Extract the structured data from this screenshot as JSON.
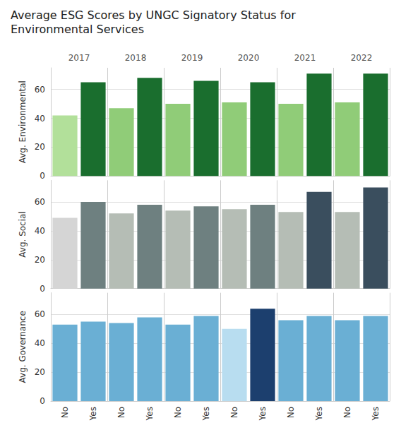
{
  "chart_data": [
    {
      "type": "bar",
      "title": "Average ESG Scores by UNGC Signatory Status for",
      "subtitle": "Environmental Services",
      "ylabel": "Avg. Environmental",
      "categories": [
        "2017",
        "2018",
        "2019",
        "2020",
        "2021",
        "2022"
      ],
      "series": [
        {
          "name": "No",
          "values": [
            42,
            47,
            50,
            51,
            50,
            51
          ],
          "colors": [
            "#b2e09a",
            "#90cc78",
            "#90cc78",
            "#90cc78",
            "#90cc78",
            "#90cc78"
          ]
        },
        {
          "name": "Yes",
          "values": [
            65,
            68,
            66,
            65,
            71,
            71
          ],
          "colors": [
            "#1a6e2e",
            "#1a6e2e",
            "#1a6e2e",
            "#1a6e2e",
            "#1a6e2e",
            "#1a6e2e"
          ]
        }
      ],
      "ylim": [
        0,
        75
      ],
      "yticks": [
        0,
        20,
        40,
        60
      ],
      "grid": true
    },
    {
      "type": "bar",
      "ylabel": "Avg. Social",
      "categories": [
        "2017",
        "2018",
        "2019",
        "2020",
        "2021",
        "2022"
      ],
      "series": [
        {
          "name": "No",
          "values": [
            49,
            52,
            54,
            55,
            53,
            53
          ],
          "colors": [
            "#d5d5d5",
            "#b5bdb5",
            "#b5bdb5",
            "#b5bdb5",
            "#b5bdb5",
            "#b5bdb5"
          ]
        },
        {
          "name": "Yes",
          "values": [
            60,
            58,
            57,
            58,
            67,
            70
          ],
          "colors": [
            "#6e8080",
            "#6e8080",
            "#6e8080",
            "#6e8080",
            "#3a4e5e",
            "#3a4e5e"
          ]
        }
      ],
      "ylim": [
        0,
        75
      ],
      "yticks": [
        0,
        20,
        40,
        60
      ],
      "grid": true
    },
    {
      "type": "bar",
      "ylabel": "Avg. Governance",
      "categories": [
        "2017",
        "2018",
        "2019",
        "2020",
        "2021",
        "2022"
      ],
      "series": [
        {
          "name": "No",
          "values": [
            53,
            54,
            53,
            50,
            56,
            56
          ],
          "colors": [
            "#6aafd4",
            "#6aafd4",
            "#6aafd4",
            "#b8ddf0",
            "#6aafd4",
            "#6aafd4"
          ]
        },
        {
          "name": "Yes",
          "values": [
            55,
            58,
            59,
            64,
            59,
            59
          ],
          "colors": [
            "#6aafd4",
            "#6aafd4",
            "#6aafd4",
            "#1c3f6e",
            "#6aafd4",
            "#6aafd4"
          ]
        }
      ],
      "ylim": [
        0,
        75
      ],
      "yticks": [
        0,
        20,
        40,
        60
      ],
      "grid": true
    }
  ]
}
